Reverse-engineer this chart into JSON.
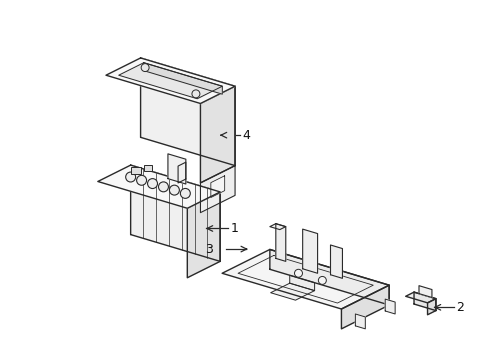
{
  "background_color": "#ffffff",
  "line_color": "#2a2a2a",
  "line_width": 1.0,
  "label_color": "#111111",
  "label_fontsize": 9,
  "figsize": [
    4.89,
    3.6
  ],
  "dpi": 100
}
